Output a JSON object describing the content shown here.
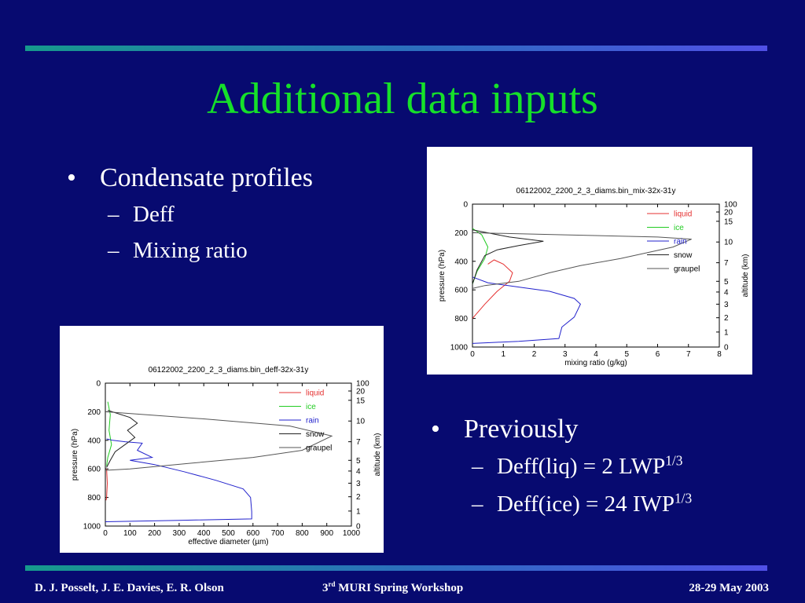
{
  "slide": {
    "title": "Additional data inputs",
    "left_bullets": {
      "main": "Condensate profiles",
      "subs": [
        "Deff",
        "Mixing ratio"
      ]
    },
    "right_bullets": {
      "main": "Previously",
      "sub1_text": "Deff(liq) = 2 LWP",
      "sub1_sup": "1/3",
      "sub2_text": "Deff(ice) = 24 IWP",
      "sub2_sup": "1/3"
    },
    "bullet_glyph": "•",
    "dash_glyph": "–",
    "footer": {
      "authors": "D. J. Posselt, J. E. Davies, E. R. Olson",
      "workshop_pre": "3",
      "workshop_sup": "rd",
      "workshop_post": " MURI Spring Workshop",
      "date": "28-29 May 2003"
    }
  },
  "colors": {
    "background": "#070a70",
    "title": "#16e02a",
    "liquid": "#e53030",
    "ice": "#22cc22",
    "rain": "#2222cc",
    "snow": "#222222",
    "graupel": "#555555"
  },
  "chart_data": [
    {
      "type": "line",
      "title": "06122002_2200_2_3_diams.bin_mix-32x-31y",
      "xlabel": "mixing ratio  (g/kg)",
      "ylabel": "pressure  (hPa)",
      "y2label": "altitude  (km)",
      "xlim": [
        0,
        8
      ],
      "ylim": [
        1000,
        0
      ],
      "xticks": [
        0,
        1,
        2,
        3,
        4,
        5,
        6,
        7,
        8
      ],
      "yticks": [
        0,
        200,
        400,
        600,
        800,
        1000
      ],
      "y2ticks": [
        {
          "label": "100",
          "p": 0
        },
        {
          "label": "20",
          "p": 55
        },
        {
          "label": "15",
          "p": 120
        },
        {
          "label": "10",
          "p": 265
        },
        {
          "label": "7",
          "p": 410
        },
        {
          "label": "5",
          "p": 540
        },
        {
          "label": "4",
          "p": 615
        },
        {
          "label": "3",
          "p": 700
        },
        {
          "label": "2",
          "p": 795
        },
        {
          "label": "1",
          "p": 895
        },
        {
          "label": "0",
          "p": 1000
        }
      ],
      "legend_position": "top-right",
      "series": [
        {
          "name": "liquid",
          "color": "#e53030",
          "points": [
            [
              0,
              800
            ],
            [
              0.4,
              700
            ],
            [
              0.8,
              610
            ],
            [
              1.2,
              540
            ],
            [
              1.3,
              480
            ],
            [
              1.0,
              420
            ],
            [
              0.7,
              390
            ],
            [
              0.5,
              420
            ]
          ]
        },
        {
          "name": "ice",
          "color": "#22cc22",
          "points": [
            [
              0,
              170
            ],
            [
              0.3,
              215
            ],
            [
              0.5,
              300
            ],
            [
              0.4,
              380
            ],
            [
              0.15,
              470
            ],
            [
              0,
              560
            ]
          ]
        },
        {
          "name": "rain",
          "color": "#2222cc",
          "points": [
            [
              0,
              510
            ],
            [
              0.5,
              550
            ],
            [
              1.5,
              580
            ],
            [
              2.5,
              610
            ],
            [
              3.3,
              660
            ],
            [
              3.5,
              700
            ],
            [
              3.3,
              790
            ],
            [
              2.9,
              860
            ],
            [
              2.8,
              940
            ],
            [
              1.5,
              960
            ],
            [
              0.5,
              970
            ],
            [
              0,
              975
            ]
          ]
        },
        {
          "name": "snow",
          "color": "#222222",
          "points": [
            [
              0,
              180
            ],
            [
              1.2,
              230
            ],
            [
              2.3,
              260
            ],
            [
              1.5,
              290
            ],
            [
              0.8,
              320
            ],
            [
              0.4,
              360
            ],
            [
              0.15,
              460
            ],
            [
              0,
              560
            ]
          ]
        },
        {
          "name": "graupel",
          "color": "#555555",
          "points": [
            [
              0,
              200
            ],
            [
              3,
              215
            ],
            [
              6,
              230
            ],
            [
              7.1,
              245
            ],
            [
              6.5,
              300
            ],
            [
              4.8,
              380
            ],
            [
              3.5,
              430
            ],
            [
              2.5,
              480
            ],
            [
              1.5,
              540
            ],
            [
              0.4,
              570
            ],
            [
              0,
              590
            ]
          ]
        }
      ]
    },
    {
      "type": "line",
      "title": "06122002_2200_2_3_diams.bin_deff-32x-31y",
      "xlabel": "effective diameter  (µm)",
      "ylabel": "pressure  (hPa)",
      "y2label": "altitude  (km)",
      "xlim": [
        0,
        1000
      ],
      "ylim": [
        1000,
        0
      ],
      "xticks": [
        0,
        100,
        200,
        300,
        400,
        500,
        600,
        700,
        800,
        900,
        1000
      ],
      "yticks": [
        0,
        200,
        400,
        600,
        800,
        1000
      ],
      "y2ticks": [
        {
          "label": "100",
          "p": 0
        },
        {
          "label": "20",
          "p": 55
        },
        {
          "label": "15",
          "p": 120
        },
        {
          "label": "10",
          "p": 265
        },
        {
          "label": "7",
          "p": 410
        },
        {
          "label": "5",
          "p": 540
        },
        {
          "label": "4",
          "p": 615
        },
        {
          "label": "3",
          "p": 700
        },
        {
          "label": "2",
          "p": 795
        },
        {
          "label": "1",
          "p": 895
        },
        {
          "label": "0",
          "p": 1000
        }
      ],
      "legend_position": "top-right",
      "series": [
        {
          "name": "liquid",
          "color": "#e53030",
          "points": [
            [
              5,
              600
            ],
            [
              8,
              700
            ],
            [
              5,
              800
            ],
            [
              3,
              820
            ]
          ]
        },
        {
          "name": "ice",
          "color": "#22cc22",
          "points": [
            [
              10,
              130
            ],
            [
              20,
              220
            ],
            [
              15,
              330
            ],
            [
              25,
              430
            ],
            [
              10,
              520
            ],
            [
              5,
              580
            ]
          ]
        },
        {
          "name": "rain",
          "color": "#2222cc",
          "points": [
            [
              5,
              390
            ],
            [
              30,
              400
            ],
            [
              80,
              410
            ],
            [
              150,
              420
            ],
            [
              130,
              470
            ],
            [
              190,
              520
            ],
            [
              100,
              540
            ],
            [
              200,
              570
            ],
            [
              320,
              620
            ],
            [
              450,
              680
            ],
            [
              560,
              740
            ],
            [
              590,
              800
            ],
            [
              595,
              900
            ],
            [
              595,
              950
            ],
            [
              300,
              960
            ],
            [
              0,
              970
            ]
          ]
        },
        {
          "name": "snow",
          "color": "#222222",
          "points": [
            [
              10,
              190
            ],
            [
              100,
              240
            ],
            [
              130,
              280
            ],
            [
              90,
              330
            ],
            [
              120,
              380
            ],
            [
              80,
              430
            ],
            [
              40,
              480
            ],
            [
              20,
              540
            ],
            [
              5,
              590
            ]
          ]
        },
        {
          "name": "graupel",
          "color": "#555555",
          "points": [
            [
              0,
              200
            ],
            [
              400,
              250
            ],
            [
              750,
              300
            ],
            [
              920,
              370
            ],
            [
              800,
              470
            ],
            [
              600,
              520
            ],
            [
              350,
              560
            ],
            [
              100,
              600
            ],
            [
              0,
              610
            ]
          ]
        }
      ]
    }
  ]
}
